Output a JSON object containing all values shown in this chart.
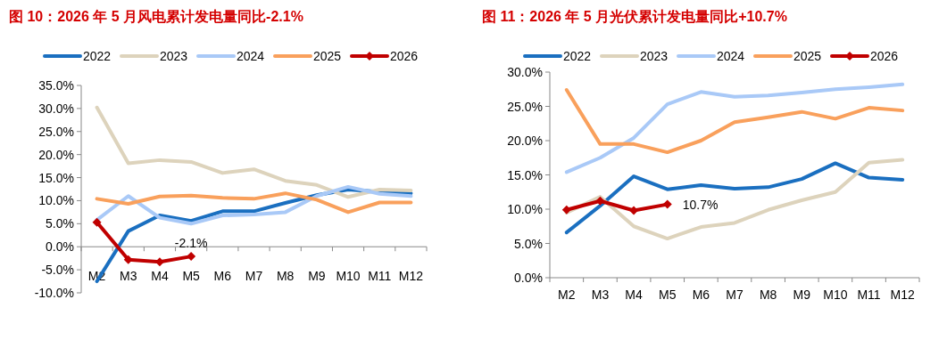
{
  "chart_data": [
    {
      "type": "line",
      "title": "图 10：2026 年 5 月风电累计发电量同比-2.1%",
      "categories": [
        "M2",
        "M3",
        "M4",
        "M5",
        "M6",
        "M7",
        "M8",
        "M9",
        "M10",
        "M11",
        "M12"
      ],
      "ylim": [
        -10,
        35
      ],
      "yticks": [
        {
          "value": -10,
          "label": "-10.0%"
        },
        {
          "value": -5,
          "label": "-5.0%"
        },
        {
          "value": 0,
          "label": "0.0%"
        },
        {
          "value": 5,
          "label": "5.0%"
        },
        {
          "value": 10,
          "label": "10.0%"
        },
        {
          "value": 15,
          "label": "15.0%"
        },
        {
          "value": 20,
          "label": "20.0%"
        },
        {
          "value": 25,
          "label": "25.0%"
        },
        {
          "value": 30,
          "label": "30.0%"
        },
        {
          "value": 35,
          "label": "35.0%"
        }
      ],
      "grid": false,
      "legend": "top",
      "series": [
        {
          "name": "2022",
          "color": "#1a6fc0",
          "marker": "none",
          "values": [
            -7.5,
            3.4,
            6.8,
            5.6,
            7.7,
            7.7,
            9.5,
            11.2,
            12.4,
            11.9,
            11.6
          ]
        },
        {
          "name": "2023",
          "color": "#ddd3bc",
          "marker": "none",
          "values": [
            30.2,
            18.1,
            18.8,
            18.4,
            16.0,
            16.8,
            14.3,
            13.4,
            10.8,
            12.4,
            12.2
          ]
        },
        {
          "name": "2024",
          "color": "#a9c9f7",
          "marker": "none",
          "values": [
            5.8,
            11.0,
            6.3,
            5.0,
            6.8,
            7.0,
            7.5,
            11.0,
            13.0,
            11.5,
            11.0
          ]
        },
        {
          "name": "2025",
          "color": "#f9a05c",
          "marker": "none",
          "values": [
            10.4,
            9.3,
            10.9,
            11.1,
            10.6,
            10.4,
            11.6,
            10.2,
            7.5,
            9.6,
            9.6
          ]
        },
        {
          "name": "2026",
          "color": "#c00000",
          "marker": "diamond",
          "values": [
            5.3,
            -2.8,
            -3.3,
            -2.1,
            null,
            null,
            null,
            null,
            null,
            null,
            null
          ],
          "value_labels": [
            null,
            null,
            null,
            "-2.1%",
            null,
            null,
            null,
            null,
            null,
            null,
            null
          ]
        }
      ]
    },
    {
      "type": "line",
      "title": "图 11：2026 年 5 月光伏累计发电量同比+10.7%",
      "categories": [
        "M2",
        "M3",
        "M4",
        "M5",
        "M6",
        "M7",
        "M8",
        "M9",
        "M10",
        "M11",
        "M12"
      ],
      "ylim": [
        0,
        30
      ],
      "yticks": [
        {
          "value": 0,
          "label": "0.0%"
        },
        {
          "value": 5,
          "label": "5.0%"
        },
        {
          "value": 10,
          "label": "10.0%"
        },
        {
          "value": 15,
          "label": "15.0%"
        },
        {
          "value": 20,
          "label": "20.0%"
        },
        {
          "value": 25,
          "label": "25.0%"
        },
        {
          "value": 30,
          "label": "30.0%"
        }
      ],
      "grid": false,
      "legend": "top",
      "series": [
        {
          "name": "2022",
          "color": "#1a6fc0",
          "marker": "none",
          "values": [
            6.6,
            10.5,
            14.8,
            12.9,
            13.5,
            13.0,
            13.2,
            14.4,
            16.7,
            14.6,
            14.3
          ]
        },
        {
          "name": "2023",
          "color": "#ddd3bc",
          "marker": "none",
          "values": [
            9.5,
            11.8,
            7.5,
            5.7,
            7.4,
            8.0,
            9.9,
            11.3,
            12.5,
            16.8,
            17.2
          ]
        },
        {
          "name": "2024",
          "color": "#a9c9f7",
          "marker": "none",
          "values": [
            15.4,
            17.5,
            20.4,
            25.3,
            27.1,
            26.4,
            26.6,
            27.0,
            27.5,
            27.8,
            28.2
          ]
        },
        {
          "name": "2025",
          "color": "#f9a05c",
          "marker": "none",
          "values": [
            27.4,
            19.5,
            19.5,
            18.3,
            20.0,
            22.7,
            23.4,
            24.2,
            23.2,
            24.8,
            24.4
          ]
        },
        {
          "name": "2026",
          "color": "#c00000",
          "marker": "diamond",
          "values": [
            9.9,
            11.2,
            9.8,
            10.7,
            null,
            null,
            null,
            null,
            null,
            null,
            null
          ],
          "value_labels": [
            null,
            null,
            null,
            "10.7%",
            null,
            null,
            null,
            null,
            null,
            null,
            null
          ]
        }
      ]
    }
  ]
}
